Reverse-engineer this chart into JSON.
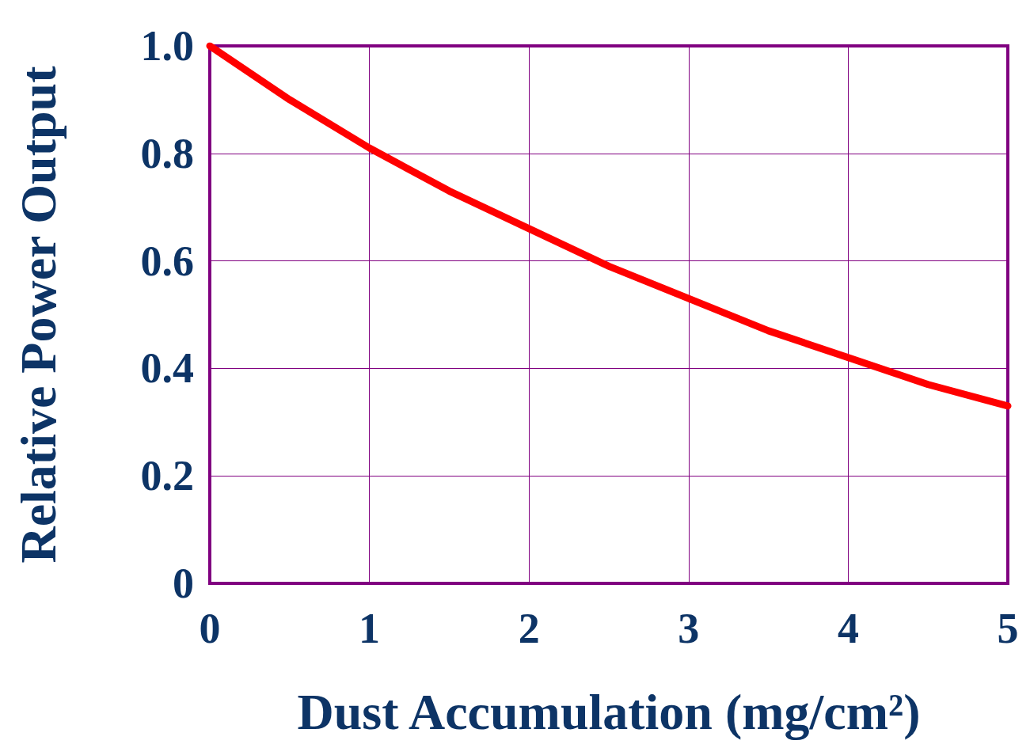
{
  "chart_data": {
    "type": "line",
    "xlabel": "Dust Accumulation (mg/cm²)",
    "ylabel": "Relative Power Output",
    "x": [
      0,
      0.5,
      1,
      1.5,
      2,
      2.5,
      3,
      3.5,
      4,
      4.5,
      5
    ],
    "series": [
      {
        "color": "#ff0000",
        "values": [
          1.0,
          0.9,
          0.81,
          0.73,
          0.66,
          0.59,
          0.53,
          0.47,
          0.42,
          0.37,
          0.33
        ]
      }
    ],
    "xlim": [
      0,
      5
    ],
    "xticks": [
      0,
      1,
      2,
      3,
      4,
      5
    ],
    "ylim": [
      0,
      1
    ],
    "yticks": [
      0,
      0.2,
      0.4,
      0.6,
      0.8,
      {
        "value": 1,
        "label": "1.0"
      }
    ],
    "grid": true,
    "line_style": "solid"
  }
}
